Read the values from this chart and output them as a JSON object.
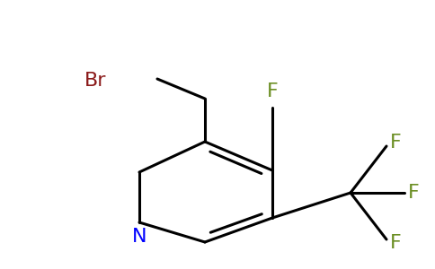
{
  "bg_color": "#ffffff",
  "atom_colors": {
    "Br": "#8b1a1a",
    "F": "#6b8e23",
    "N": "#0000ff",
    "C": "#000000"
  },
  "figsize": [
    4.84,
    3.0
  ],
  "dpi": 100
}
